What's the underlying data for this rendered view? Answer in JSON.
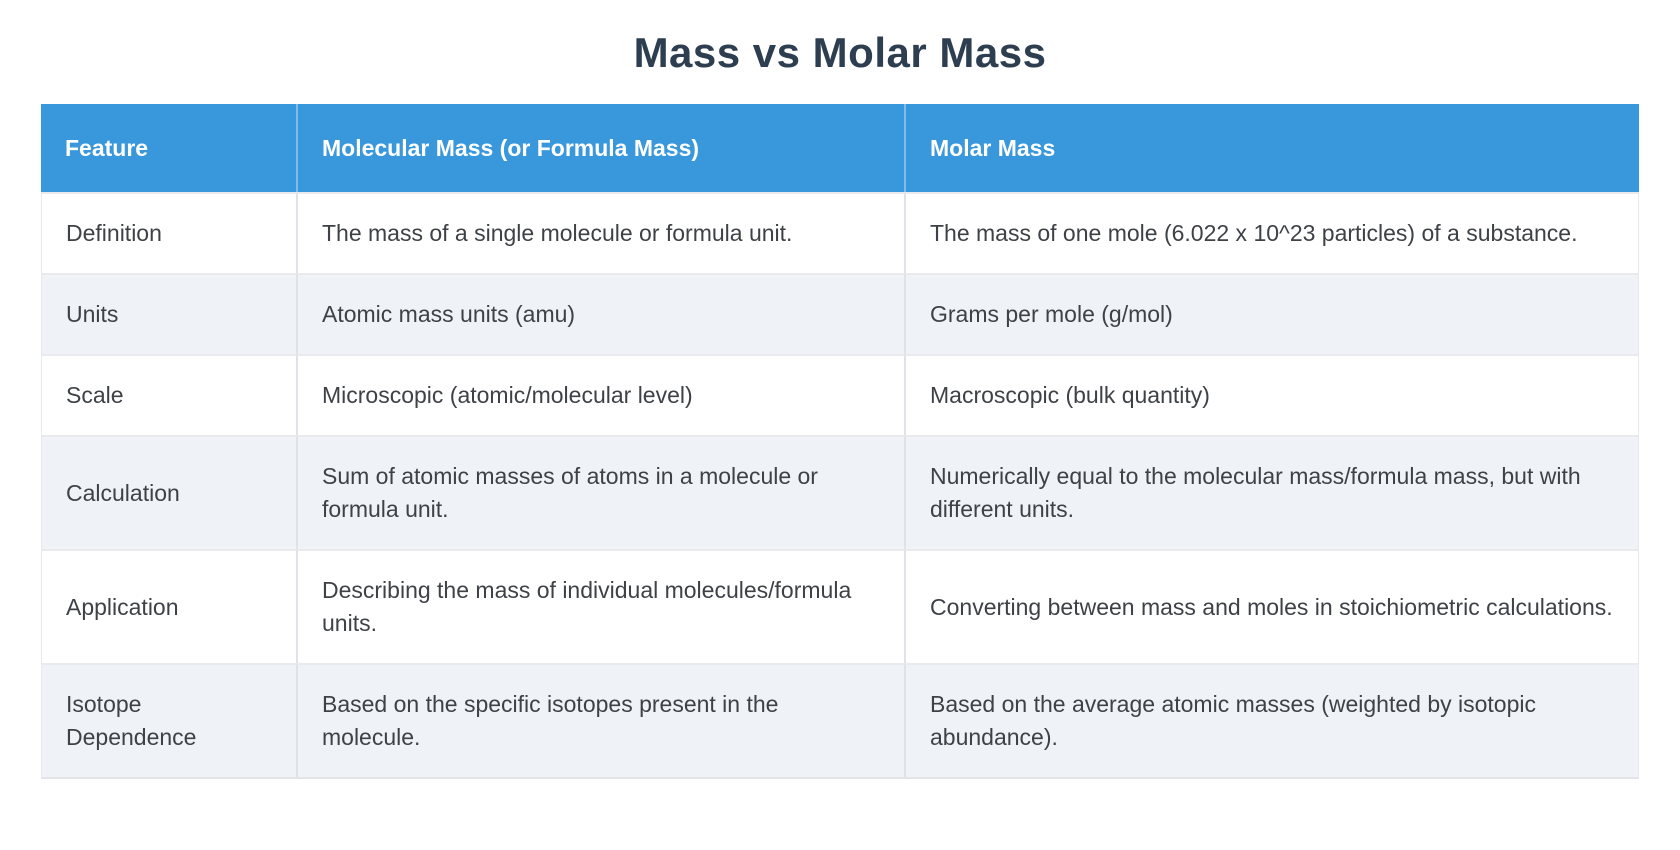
{
  "page": {
    "title": "Mass vs Molar Mass"
  },
  "colors": {
    "title_text": "#2c3e50",
    "header_bg": "#3998db",
    "header_text": "#ffffff",
    "row_bg": "#ffffff",
    "row_alt_bg": "#eff3f8",
    "body_text": "#3e4247",
    "divider": "#dfe2e6"
  },
  "table": {
    "columns": [
      "Feature",
      "Molecular Mass (or Formula Mass)",
      "Molar Mass"
    ],
    "rows": [
      {
        "feature": "Definition",
        "molecular_mass": "The mass of a single molecule or formula unit.",
        "molar_mass": "The mass of one mole (6.022 x 10^23 particles) of a substance."
      },
      {
        "feature": "Units",
        "molecular_mass": "Atomic mass units (amu)",
        "molar_mass": "Grams per mole (g/mol)"
      },
      {
        "feature": "Scale",
        "molecular_mass": "Microscopic (atomic/molecular level)",
        "molar_mass": "Macroscopic (bulk quantity)"
      },
      {
        "feature": "Calculation",
        "molecular_mass": "Sum of atomic masses of atoms in a molecule or formula unit.",
        "molar_mass": "Numerically equal to the molecular mass/formula mass, but with different units."
      },
      {
        "feature": "Application",
        "molecular_mass": "Describing the mass of individual molecules/formula units.",
        "molar_mass": "Converting between mass and moles in stoichiometric calculations."
      },
      {
        "feature": "Isotope Dependence",
        "molecular_mass": "Based on the specific isotopes present in the molecule.",
        "molar_mass": "Based on the average atomic masses (weighted by isotopic abundance)."
      }
    ]
  }
}
